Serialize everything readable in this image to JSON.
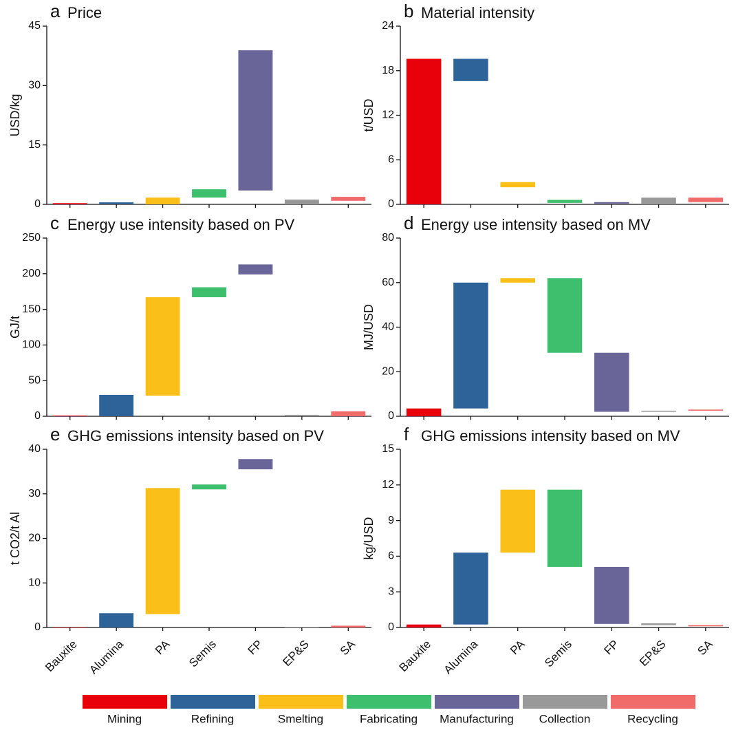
{
  "chart_data": [
    {
      "type": "floating-bar",
      "panel": "a",
      "title": "Price",
      "ylabel": "USD/kg",
      "ylim": [
        0,
        45
      ],
      "yticks": [
        0,
        15,
        30,
        45
      ],
      "values": [
        [
          0,
          0.3
        ],
        [
          0,
          0.5
        ],
        [
          0,
          1.7
        ],
        [
          1.7,
          3.8
        ],
        [
          3.5,
          38.9
        ],
        [
          0,
          1.2
        ],
        [
          0.9,
          1.9
        ]
      ]
    },
    {
      "type": "floating-bar",
      "panel": "b",
      "title": "Material intensity",
      "ylabel": "t/USD",
      "ylim": [
        0,
        24
      ],
      "yticks": [
        0,
        6,
        12,
        18,
        24
      ],
      "values": [
        [
          0,
          19.6
        ],
        [
          16.6,
          19.6
        ],
        [
          2.3,
          3.0
        ],
        [
          0.2,
          0.6
        ],
        [
          0.1,
          0.3
        ],
        [
          0,
          0.9
        ],
        [
          0.3,
          0.9
        ]
      ]
    },
    {
      "type": "floating-bar",
      "panel": "c",
      "title": "Energy use intensity based on PV",
      "ylabel": "GJ/t",
      "ylim": [
        0,
        250
      ],
      "yticks": [
        0,
        50,
        100,
        150,
        200,
        250
      ],
      "values": [
        [
          0,
          1
        ],
        [
          0,
          30
        ],
        [
          29,
          167
        ],
        [
          167,
          181
        ],
        [
          199,
          213
        ],
        [
          0,
          2
        ],
        [
          0,
          7
        ]
      ]
    },
    {
      "type": "floating-bar",
      "panel": "d",
      "title": "Energy use intensity based on MV",
      "ylabel": "MJ/USD",
      "ylim": [
        0,
        80
      ],
      "yticks": [
        0,
        20,
        40,
        60,
        80
      ],
      "values": [
        [
          0,
          3.5
        ],
        [
          3.5,
          60
        ],
        [
          60,
          62
        ],
        [
          28.5,
          62
        ],
        [
          2,
          28.5
        ],
        [
          2,
          2.5
        ],
        [
          2.5,
          3
        ]
      ]
    },
    {
      "type": "floating-bar",
      "panel": "e",
      "title": "GHG emissions intensity based on PV",
      "ylabel": "t CO2/t Al",
      "ylim": [
        0,
        40
      ],
      "yticks": [
        0,
        10,
        20,
        30,
        40
      ],
      "categories": [
        "Bauxite",
        "Alumina",
        "PA",
        "Semis",
        "FP",
        "EP&S",
        "SA"
      ],
      "values": [
        [
          0,
          0.1
        ],
        [
          0,
          3.2
        ],
        [
          3,
          31.3
        ],
        [
          31,
          32.1
        ],
        [
          35.5,
          37.8
        ],
        [
          0,
          0.1
        ],
        [
          0,
          0.4
        ]
      ]
    },
    {
      "type": "floating-bar",
      "panel": "f",
      "title": "GHG emissions intensity based on MV",
      "ylabel": "kg/USD",
      "ylim": [
        0,
        15
      ],
      "yticks": [
        0,
        3,
        6,
        9,
        12,
        15
      ],
      "categories": [
        "Bauxite",
        "Alumina",
        "PA",
        "Semis",
        "FP",
        "EP&S",
        "SA"
      ],
      "values": [
        [
          0,
          0.25
        ],
        [
          0.25,
          6.3
        ],
        [
          6.3,
          11.6
        ],
        [
          5.1,
          11.6
        ],
        [
          0.3,
          5.1
        ],
        [
          0.2,
          0.35
        ],
        [
          0.1,
          0.2
        ]
      ]
    }
  ],
  "legend": [
    {
      "name": "Mining",
      "color": "#e8000b"
    },
    {
      "name": "Refining",
      "color": "#2e6399"
    },
    {
      "name": "Smelting",
      "color": "#fbbf1a"
    },
    {
      "name": "Fabricating",
      "color": "#3dbf6e"
    },
    {
      "name": "Manufacturing",
      "color": "#6a6599"
    },
    {
      "name": "Collection",
      "color": "#999999"
    },
    {
      "name": "Recycling",
      "color": "#f26b6b"
    }
  ]
}
